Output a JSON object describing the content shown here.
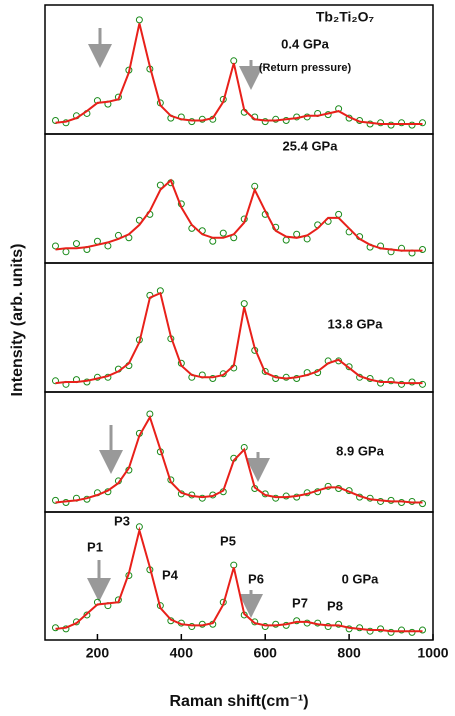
{
  "y_label": "Intensity (arb. units)",
  "chart_data": [
    {
      "type": "line",
      "title": "Tb₂Ti₂O₇",
      "label": "0.4 GPa",
      "sublabel": "(Return pressure)",
      "xlim": [
        75,
        1000
      ],
      "ylim": [
        0,
        1
      ],
      "x": [
        100,
        125,
        150,
        175,
        200,
        225,
        250,
        275,
        300,
        325,
        350,
        375,
        400,
        425,
        450,
        475,
        500,
        525,
        550,
        575,
        600,
        625,
        650,
        675,
        700,
        725,
        750,
        775,
        800,
        825,
        850,
        875,
        900,
        925,
        950,
        975
      ],
      "series": [
        {
          "name": "data",
          "color": "#1a8a1a",
          "values": [
            0.09,
            0.07,
            0.13,
            0.15,
            0.26,
            0.23,
            0.29,
            0.52,
            0.95,
            0.53,
            0.24,
            0.11,
            0.12,
            0.08,
            0.1,
            0.1,
            0.27,
            0.6,
            0.16,
            0.12,
            0.08,
            0.1,
            0.09,
            0.12,
            0.12,
            0.15,
            0.14,
            0.19,
            0.11,
            0.09,
            0.06,
            0.07,
            0.05,
            0.07,
            0.05,
            0.07
          ]
        },
        {
          "name": "fit",
          "color": "#e8201a",
          "values": [
            0.07,
            0.08,
            0.11,
            0.17,
            0.24,
            0.25,
            0.27,
            0.5,
            0.92,
            0.55,
            0.22,
            0.13,
            0.1,
            0.09,
            0.09,
            0.11,
            0.25,
            0.58,
            0.18,
            0.1,
            0.09,
            0.09,
            0.1,
            0.11,
            0.13,
            0.13,
            0.15,
            0.17,
            0.12,
            0.08,
            0.07,
            0.06,
            0.06,
            0.06,
            0.06,
            0.06
          ]
        }
      ]
    },
    {
      "type": "line",
      "label": "25.4 GPa",
      "xlim": [
        75,
        1000
      ],
      "ylim": [
        0,
        1
      ],
      "x": [
        100,
        125,
        150,
        175,
        200,
        225,
        250,
        275,
        300,
        325,
        350,
        375,
        400,
        425,
        450,
        475,
        500,
        525,
        550,
        575,
        600,
        625,
        650,
        675,
        700,
        725,
        750,
        775,
        800,
        825,
        850,
        875,
        900,
        925,
        950,
        975
      ],
      "series": [
        {
          "name": "data",
          "color": "#1a8a1a",
          "values": [
            0.12,
            0.07,
            0.14,
            0.09,
            0.16,
            0.12,
            0.21,
            0.19,
            0.34,
            0.39,
            0.64,
            0.66,
            0.48,
            0.27,
            0.25,
            0.16,
            0.23,
            0.19,
            0.35,
            0.63,
            0.39,
            0.28,
            0.17,
            0.22,
            0.18,
            0.3,
            0.33,
            0.39,
            0.24,
            0.2,
            0.11,
            0.12,
            0.07,
            0.1,
            0.06,
            0.09
          ]
        },
        {
          "name": "fit",
          "color": "#e8201a",
          "values": [
            0.09,
            0.1,
            0.1,
            0.11,
            0.13,
            0.15,
            0.18,
            0.22,
            0.3,
            0.42,
            0.6,
            0.68,
            0.45,
            0.3,
            0.22,
            0.19,
            0.19,
            0.22,
            0.32,
            0.6,
            0.42,
            0.25,
            0.2,
            0.19,
            0.21,
            0.27,
            0.36,
            0.36,
            0.27,
            0.18,
            0.13,
            0.1,
            0.09,
            0.08,
            0.08,
            0.08
          ]
        }
      ]
    },
    {
      "type": "line",
      "label": "13.8 GPa",
      "xlim": [
        75,
        1000
      ],
      "ylim": [
        0,
        1
      ],
      "x": [
        100,
        125,
        150,
        175,
        200,
        225,
        250,
        275,
        300,
        325,
        350,
        375,
        400,
        425,
        450,
        475,
        500,
        525,
        550,
        575,
        600,
        625,
        650,
        675,
        700,
        725,
        750,
        775,
        800,
        825,
        850,
        875,
        900,
        925,
        950,
        975
      ],
      "series": [
        {
          "name": "data",
          "color": "#1a8a1a",
          "values": [
            0.07,
            0.04,
            0.08,
            0.06,
            0.1,
            0.1,
            0.17,
            0.2,
            0.42,
            0.8,
            0.84,
            0.43,
            0.22,
            0.1,
            0.12,
            0.09,
            0.13,
            0.18,
            0.73,
            0.33,
            0.15,
            0.09,
            0.1,
            0.09,
            0.14,
            0.14,
            0.24,
            0.24,
            0.19,
            0.1,
            0.09,
            0.05,
            0.07,
            0.04,
            0.06,
            0.04
          ]
        },
        {
          "name": "fit",
          "color": "#e8201a",
          "values": [
            0.05,
            0.06,
            0.06,
            0.07,
            0.09,
            0.11,
            0.15,
            0.22,
            0.4,
            0.78,
            0.82,
            0.45,
            0.2,
            0.12,
            0.1,
            0.1,
            0.12,
            0.2,
            0.7,
            0.35,
            0.14,
            0.1,
            0.09,
            0.1,
            0.12,
            0.15,
            0.22,
            0.25,
            0.18,
            0.11,
            0.08,
            0.06,
            0.06,
            0.05,
            0.05,
            0.05
          ]
        }
      ]
    },
    {
      "type": "line",
      "label": "8.9 GPa",
      "xlim": [
        75,
        1000
      ],
      "ylim": [
        0,
        1
      ],
      "x": [
        100,
        125,
        150,
        175,
        200,
        225,
        250,
        275,
        300,
        325,
        350,
        375,
        400,
        425,
        450,
        475,
        500,
        525,
        550,
        575,
        600,
        625,
        650,
        675,
        700,
        725,
        750,
        775,
        800,
        825,
        850,
        875,
        900,
        925,
        950,
        975
      ],
      "series": [
        {
          "name": "data",
          "color": "#1a8a1a",
          "values": [
            0.08,
            0.06,
            0.1,
            0.09,
            0.15,
            0.16,
            0.26,
            0.36,
            0.7,
            0.88,
            0.53,
            0.27,
            0.14,
            0.13,
            0.1,
            0.13,
            0.16,
            0.47,
            0.57,
            0.19,
            0.14,
            0.1,
            0.12,
            0.11,
            0.15,
            0.16,
            0.21,
            0.19,
            0.17,
            0.11,
            0.1,
            0.07,
            0.08,
            0.06,
            0.07,
            0.05
          ]
        },
        {
          "name": "fit",
          "color": "#e8201a",
          "values": [
            0.06,
            0.07,
            0.08,
            0.1,
            0.13,
            0.17,
            0.24,
            0.38,
            0.68,
            0.85,
            0.55,
            0.25,
            0.15,
            0.12,
            0.11,
            0.12,
            0.17,
            0.45,
            0.55,
            0.2,
            0.13,
            0.11,
            0.11,
            0.12,
            0.14,
            0.17,
            0.2,
            0.2,
            0.16,
            0.12,
            0.09,
            0.08,
            0.07,
            0.07,
            0.06,
            0.06
          ]
        }
      ]
    },
    {
      "type": "line",
      "label": "0 GPa",
      "x_label": "Raman shift(cm⁻¹)",
      "peak_labels": [
        "P1",
        "P3",
        "P4",
        "P5",
        "P6",
        "P7",
        "P8"
      ],
      "xlim": [
        75,
        1000
      ],
      "ylim": [
        0,
        1
      ],
      "xticks": [
        200,
        400,
        600,
        800,
        1000
      ],
      "x": [
        100,
        125,
        150,
        175,
        200,
        225,
        250,
        275,
        300,
        325,
        350,
        375,
        400,
        425,
        450,
        475,
        500,
        525,
        550,
        575,
        600,
        625,
        650,
        675,
        700,
        725,
        750,
        775,
        800,
        825,
        850,
        875,
        900,
        925,
        950,
        975
      ],
      "series": [
        {
          "name": "data",
          "color": "#1a8a1a",
          "values": [
            0.08,
            0.07,
            0.13,
            0.19,
            0.3,
            0.27,
            0.32,
            0.53,
            0.95,
            0.58,
            0.27,
            0.14,
            0.12,
            0.09,
            0.11,
            0.11,
            0.3,
            0.62,
            0.19,
            0.13,
            0.09,
            0.11,
            0.1,
            0.14,
            0.12,
            0.12,
            0.09,
            0.11,
            0.07,
            0.08,
            0.05,
            0.07,
            0.04,
            0.06,
            0.04,
            0.06
          ]
        },
        {
          "name": "fit",
          "color": "#e8201a",
          "values": [
            0.07,
            0.08,
            0.12,
            0.2,
            0.28,
            0.29,
            0.3,
            0.55,
            0.92,
            0.6,
            0.25,
            0.15,
            0.11,
            0.1,
            0.1,
            0.12,
            0.28,
            0.6,
            0.2,
            0.12,
            0.1,
            0.1,
            0.11,
            0.13,
            0.13,
            0.11,
            0.1,
            0.1,
            0.08,
            0.07,
            0.06,
            0.06,
            0.05,
            0.05,
            0.05,
            0.05
          ]
        }
      ]
    }
  ]
}
